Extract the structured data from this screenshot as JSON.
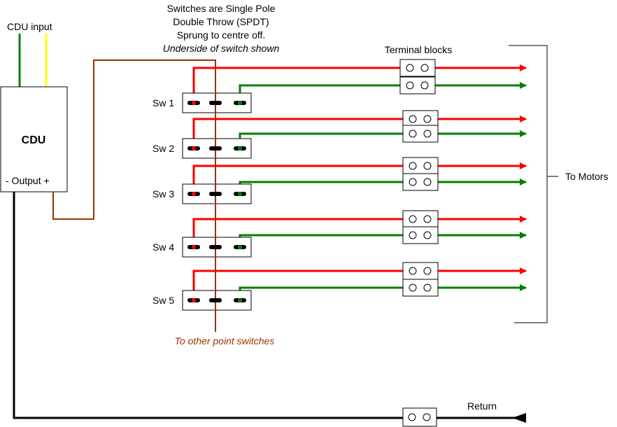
{
  "labels": {
    "cdu_input": "CDU input",
    "cdu": "CDU",
    "cdu_output": "-  Output +",
    "note_line1": "Switches are Single Pole",
    "note_line2": "Double Throw (SPDT)",
    "note_line3": "Sprung to centre off.",
    "note_line4": "Underside of switch shown",
    "terminal_blocks": "Terminal blocks",
    "to_motors": "To Motors",
    "to_other": "To other point switches",
    "return": "Return"
  },
  "switches": [
    {
      "label": "Sw 1"
    },
    {
      "label": "Sw 2"
    },
    {
      "label": "Sw 3"
    },
    {
      "label": "Sw 4"
    },
    {
      "label": "Sw 5"
    }
  ],
  "colors": {
    "red_wire": "#ff0000",
    "green_wire": "#008000",
    "yellow_wire": "#ffff00",
    "brown_wire": "#993300",
    "return_wire": "#000000",
    "outline": "#000000"
  }
}
